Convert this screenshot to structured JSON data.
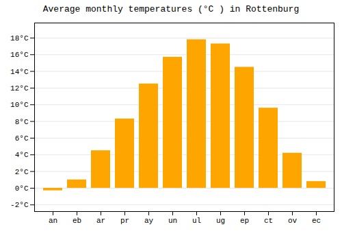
{
  "chart_data": {
    "type": "bar",
    "title": "Average monthly temperatures (°C ) in Rottenburg",
    "categories": [
      "an",
      "eb",
      "ar",
      "pr",
      "ay",
      "un",
      "ul",
      "ug",
      "ep",
      "ct",
      "ov",
      "ec"
    ],
    "values": [
      -0.3,
      1.0,
      4.5,
      8.3,
      12.5,
      15.7,
      17.8,
      17.3,
      14.5,
      9.6,
      4.2,
      0.8
    ],
    "color": "#FFA500",
    "ylim": [
      -2.8,
      19.8
    ],
    "yticks": [
      {
        "value": -2,
        "label": "-2°C"
      },
      {
        "value": 0,
        "label": "0°C"
      },
      {
        "value": 2,
        "label": "2°C"
      },
      {
        "value": 4,
        "label": "4°C"
      },
      {
        "value": 6,
        "label": "6°C"
      },
      {
        "value": 8,
        "label": "8°C"
      },
      {
        "value": 10,
        "label": "10°C"
      },
      {
        "value": 12,
        "label": "12°C"
      },
      {
        "value": 14,
        "label": "14°C"
      },
      {
        "value": 16,
        "label": "16°C"
      },
      {
        "value": 18,
        "label": "18°C"
      }
    ],
    "grid": true
  }
}
